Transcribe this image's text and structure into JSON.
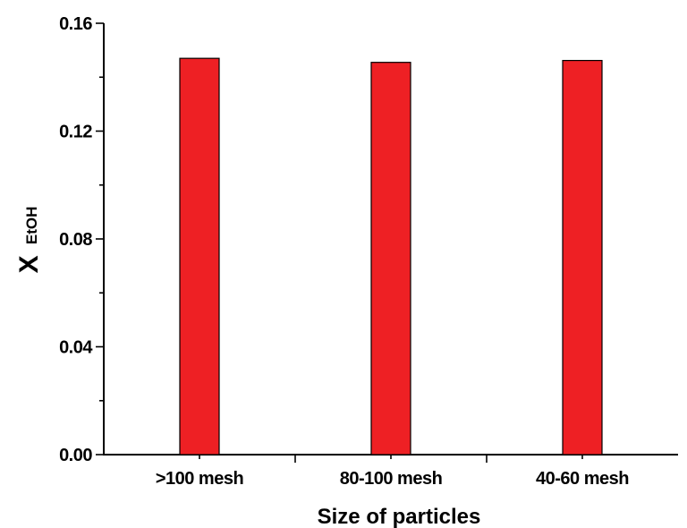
{
  "chart_data": {
    "type": "bar",
    "categories": [
      ">100 mesh",
      "80-100 mesh",
      "40-60 mesh"
    ],
    "series": [
      {
        "values": [
          0.147,
          0.1455,
          0.1462
        ],
        "color": "#ee2024"
      }
    ],
    "xlabel": "Size of particles",
    "ylabel": {
      "main": "X",
      "subscript": "EtOH"
    },
    "ylim": [
      0,
      0.16
    ],
    "yticks": [
      "0.00",
      "0.04",
      "0.08",
      "0.12",
      "0.16"
    ],
    "grid": false,
    "legend": "none"
  }
}
